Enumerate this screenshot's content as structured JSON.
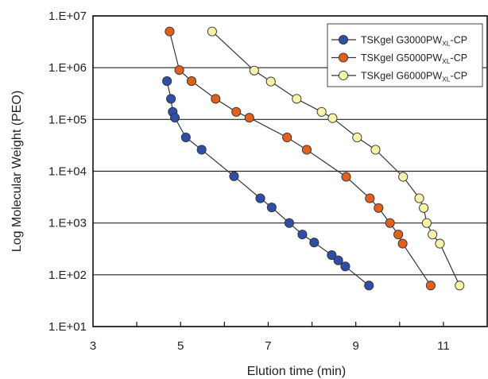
{
  "chart_data": {
    "type": "scatter",
    "xlabel": "Elution time (min)",
    "ylabel": "Log Molecular Weight (PEO)",
    "xlim": [
      3,
      12
    ],
    "ylim": [
      10,
      10000000
    ],
    "y_scale": "log",
    "x_ticks": [
      3,
      5,
      7,
      9,
      11
    ],
    "x_tick_labels": [
      "3",
      "5",
      "7",
      "9",
      "11"
    ],
    "y_ticks": [
      10,
      100,
      1000,
      10000,
      100000,
      1000000,
      10000000
    ],
    "y_tick_labels": [
      "1.E+01",
      "1.E+02",
      "1.E+03",
      "1.E+04",
      "1.E+05",
      "1.E+06",
      "1.E+07"
    ],
    "grid": "horizontal",
    "legend_position": "top-right",
    "series": [
      {
        "name": "TSKgel G3000PW",
        "name_sub": "XL",
        "name_suffix": "-CP",
        "color": "#2f4ea8",
        "x": [
          4.69,
          4.78,
          4.82,
          4.87,
          5.12,
          5.48,
          6.22,
          6.82,
          7.08,
          7.48,
          7.78,
          8.05,
          8.45,
          8.6,
          8.76,
          9.3
        ],
        "y": [
          550000,
          250000,
          140000,
          108000,
          45000,
          26000,
          8000,
          3000,
          2000,
          1000,
          600,
          420,
          240,
          190,
          145,
          62
        ]
      },
      {
        "name": "TSKgel G5000PW",
        "name_sub": "XL",
        "name_suffix": "-CP",
        "color": "#e0601c",
        "x": [
          4.75,
          4.97,
          5.25,
          5.8,
          6.27,
          6.57,
          7.43,
          7.88,
          8.78,
          9.32,
          9.52,
          9.78,
          9.97,
          10.07,
          10.71
        ],
        "y": [
          5000000,
          900000,
          550000,
          250000,
          140000,
          108000,
          45000,
          26000,
          7800,
          3000,
          1950,
          1000,
          600,
          400,
          62
        ]
      },
      {
        "name": "TSKgel G6000PW",
        "name_sub": "XL",
        "name_suffix": "-CP",
        "color": "#f7f4a8",
        "x": [
          5.72,
          6.68,
          7.06,
          7.65,
          8.22,
          8.47,
          9.03,
          9.45,
          10.08,
          10.45,
          10.55,
          10.62,
          10.75,
          10.92,
          11.37
        ],
        "y": [
          5000000,
          880000,
          540000,
          250000,
          140000,
          106000,
          45000,
          26000,
          7800,
          3000,
          1950,
          1000,
          600,
          400,
          62
        ]
      }
    ]
  }
}
